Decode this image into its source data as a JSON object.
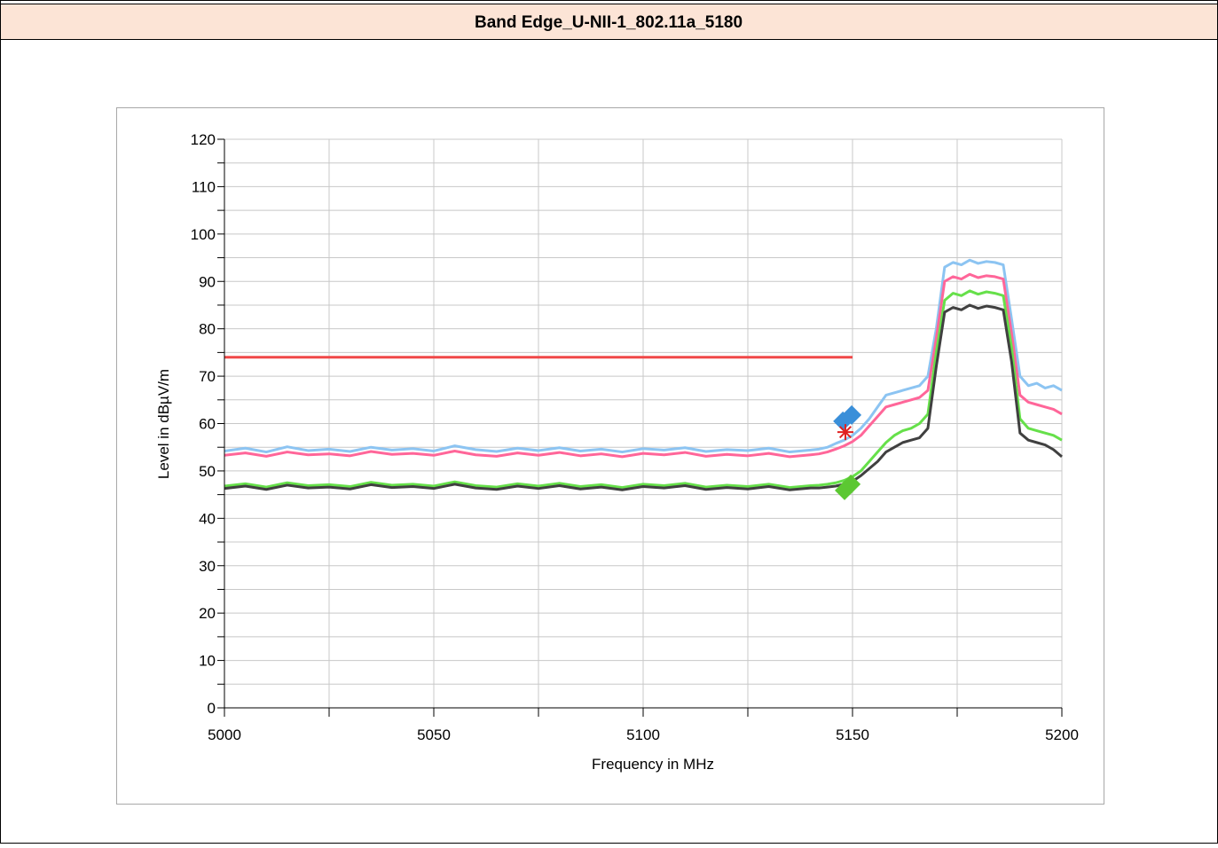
{
  "chart_data": {
    "type": "line",
    "title": "Band  Edge_U-NII-1_802.11a_5180",
    "xlabel": "Frequency in MHz",
    "ylabel": "Level in dBµV/m",
    "xlim": [
      5000,
      5200
    ],
    "ylim": [
      0,
      120
    ],
    "xticks": [
      5000,
      5050,
      5100,
      5150,
      5200
    ],
    "xminor": [
      5025,
      5075,
      5125,
      5175
    ],
    "yticks": [
      0,
      10,
      20,
      30,
      40,
      50,
      60,
      70,
      80,
      90,
      100,
      110,
      120
    ],
    "yminor": [
      5,
      15,
      25,
      35,
      45,
      55,
      65,
      75,
      85,
      95,
      105,
      115
    ],
    "grid": true,
    "x": [
      5000,
      5005,
      5010,
      5015,
      5020,
      5025,
      5030,
      5035,
      5040,
      5045,
      5050,
      5055,
      5060,
      5065,
      5070,
      5075,
      5080,
      5085,
      5090,
      5095,
      5100,
      5105,
      5110,
      5115,
      5120,
      5125,
      5130,
      5135,
      5140,
      5142,
      5144,
      5146,
      5148,
      5150,
      5152,
      5154,
      5156,
      5158,
      5160,
      5162,
      5164,
      5166,
      5168,
      5170,
      5172,
      5174,
      5176,
      5178,
      5180,
      5182,
      5184,
      5186,
      5188,
      5190,
      5192,
      5194,
      5196,
      5198,
      5200
    ],
    "series": [
      {
        "color": "#8cc4f2",
        "values": [
          54.2,
          54.8,
          54.0,
          55.1,
          54.3,
          54.6,
          54.1,
          55.0,
          54.4,
          54.7,
          54.2,
          55.3,
          54.5,
          54.1,
          54.8,
          54.3,
          54.9,
          54.2,
          54.6,
          54.0,
          54.7,
          54.4,
          54.9,
          54.1,
          54.5,
          54.3,
          54.8,
          54.0,
          54.4,
          54.6,
          55.0,
          55.8,
          56.5,
          57.5,
          59,
          61,
          63.5,
          66,
          66.5,
          67,
          67.5,
          68,
          70,
          80,
          93,
          94,
          93.5,
          94.5,
          93.8,
          94.2,
          94,
          93.5,
          82,
          70,
          68,
          68.5,
          67.5,
          68,
          67
        ]
      },
      {
        "color": "#ff6699",
        "values": [
          53.3,
          53.8,
          53.1,
          54.0,
          53.4,
          53.6,
          53.2,
          54.1,
          53.5,
          53.7,
          53.3,
          54.2,
          53.4,
          53.1,
          53.8,
          53.3,
          53.9,
          53.2,
          53.6,
          53.0,
          53.7,
          53.4,
          53.9,
          53.1,
          53.5,
          53.2,
          53.7,
          53.0,
          53.4,
          53.6,
          54.0,
          54.6,
          55.3,
          56.2,
          57.5,
          59.5,
          61.5,
          63.5,
          64,
          64.5,
          65,
          65.5,
          67,
          78,
          90,
          91,
          90.5,
          91.5,
          90.8,
          91.2,
          91,
          90.5,
          79,
          66,
          64.5,
          64,
          63.5,
          63,
          62
        ]
      },
      {
        "color": "#66e04a",
        "values": [
          46.8,
          47.3,
          46.6,
          47.5,
          46.9,
          47.1,
          46.7,
          47.6,
          47.0,
          47.2,
          46.8,
          47.7,
          46.9,
          46.6,
          47.3,
          46.8,
          47.4,
          46.7,
          47.1,
          46.5,
          47.2,
          46.9,
          47.4,
          46.6,
          47.0,
          46.7,
          47.2,
          46.5,
          46.9,
          47.0,
          47.2,
          47.5,
          48.0,
          48.8,
          50,
          52,
          54,
          56,
          57.5,
          58.5,
          59,
          60,
          62,
          75,
          86,
          87.5,
          87,
          88,
          87.3,
          87.8,
          87.5,
          87,
          76,
          61,
          59,
          58.5,
          58,
          57.5,
          56.5
        ]
      },
      {
        "color": "#404040",
        "values": [
          46.3,
          46.8,
          46.1,
          47.0,
          46.4,
          46.6,
          46.2,
          47.1,
          46.5,
          46.7,
          46.3,
          47.2,
          46.4,
          46.1,
          46.8,
          46.3,
          46.9,
          46.2,
          46.6,
          46.0,
          46.7,
          46.4,
          46.9,
          46.1,
          46.5,
          46.2,
          46.7,
          46.0,
          46.4,
          46.4,
          46.6,
          46.8,
          47.2,
          47.8,
          49,
          50.5,
          52,
          54,
          55,
          56,
          56.5,
          57,
          59,
          72,
          83.5,
          84.5,
          84,
          85,
          84.3,
          84.8,
          84.5,
          84,
          73,
          58,
          56.5,
          56,
          55.5,
          54.5,
          53
        ]
      }
    ],
    "limit_line": {
      "color": "#f04848",
      "x": [
        5000,
        5150
      ],
      "values": [
        74,
        74
      ]
    },
    "markers": [
      {
        "x": 5147.7,
        "y": 60.5,
        "color": "#3a8fd9",
        "shape": "diamond"
      },
      {
        "x": 5149.8,
        "y": 61.8,
        "color": "#3a8fd9",
        "shape": "diamond"
      },
      {
        "x": 5148.1,
        "y": 45.9,
        "color": "#5cc832",
        "shape": "diamond"
      },
      {
        "x": 5149.6,
        "y": 47.2,
        "color": "#5cc832",
        "shape": "diamond"
      },
      {
        "x": 5148.3,
        "y": 58.2,
        "color": "#e02020",
        "shape": "star"
      }
    ]
  }
}
